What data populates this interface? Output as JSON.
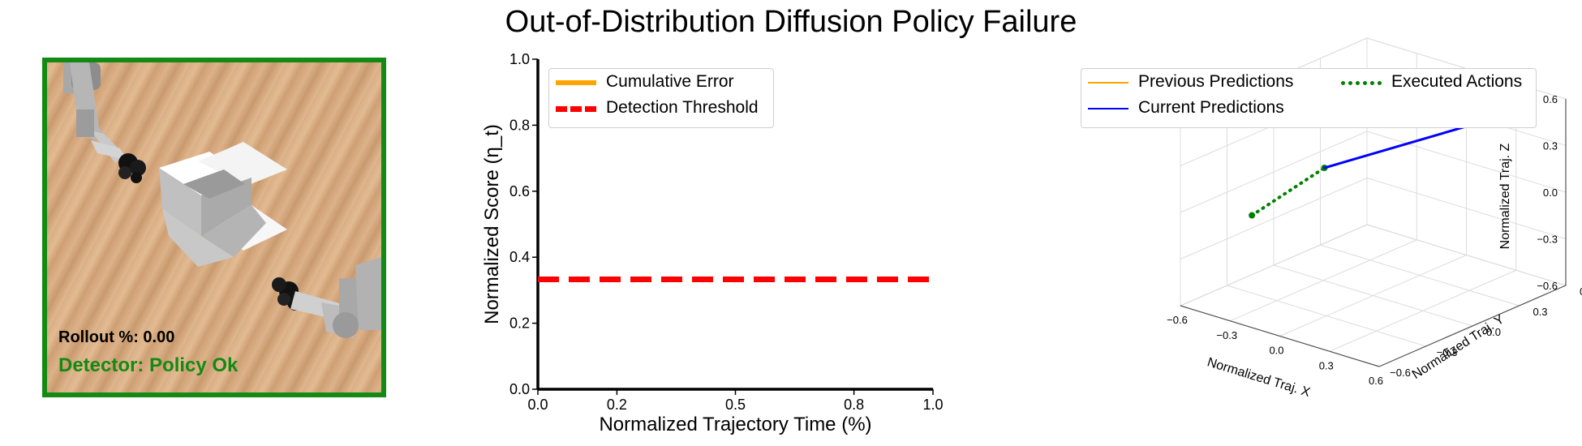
{
  "figure": {
    "title": "Out-of-Distribution Diffusion Policy Failure"
  },
  "scene": {
    "rollout_label": "Rollout %: 0.00",
    "detector_label": "Detector: Policy Ok",
    "frame_color": "#138a13",
    "status_color": "#138a13"
  },
  "chart_data": [
    {
      "type": "line",
      "xlabel": "Normalized Trajectory Time (%)",
      "ylabel": "Normalized Score (η_t)",
      "xlim": [
        0.0,
        1.0
      ],
      "ylim": [
        0.0,
        1.0
      ],
      "xticks": [
        "0.0",
        "0.2",
        "0.5",
        "0.8",
        "1.0"
      ],
      "xtick_values": [
        0.0,
        0.2,
        0.5,
        0.8,
        1.0
      ],
      "yticks": [
        "0.0",
        "0.2",
        "0.4",
        "0.6",
        "0.8",
        "1.0"
      ],
      "ytick_values": [
        0.0,
        0.2,
        0.4,
        0.6,
        0.8,
        1.0
      ],
      "grid": false,
      "legend": "upper-left",
      "series": [
        {
          "name": "Cumulative Error",
          "color": "#ffa500",
          "style": "solid",
          "x": [],
          "y": []
        },
        {
          "name": "Detection Threshold",
          "color": "#ff0000",
          "style": "dashed",
          "x": [
            0.0,
            1.0
          ],
          "y": [
            0.333,
            0.333
          ]
        }
      ]
    },
    {
      "type": "line3d",
      "xlabel": "Normalized Traj. X",
      "ylabel": "Normalized Traj. Y",
      "zlabel": "Normalized Traj. Z",
      "xlim": [
        -0.6,
        0.6
      ],
      "ylim": [
        -0.6,
        0.6
      ],
      "zlim": [
        -0.6,
        0.6
      ],
      "xticks": [
        "−0.6",
        "−0.3",
        "0.0",
        "0.3",
        "0.6"
      ],
      "yticks": [
        "−0.6",
        "−0.3",
        "0.0",
        "0.3",
        "0.6"
      ],
      "zticks": [
        "−0.6",
        "−0.3",
        "0.0",
        "0.3",
        "0.6"
      ],
      "grid": true,
      "legend": "top",
      "series": [
        {
          "name": "Previous Predictions",
          "color": "#ffa500",
          "style": "solid",
          "points": [
            [
              -0.2,
              -0.1,
              0.2
            ],
            [
              0.55,
              0.45,
              0.6
            ]
          ]
        },
        {
          "name": "Executed Actions",
          "color": "#008000",
          "style": "dotted",
          "points": [
            [
              -0.45,
              -0.3,
              -0.1
            ],
            [
              -0.2,
              -0.1,
              0.2
            ]
          ]
        },
        {
          "name": "Current Predictions",
          "color": "#0000ff",
          "style": "solid",
          "points": [
            [
              -0.2,
              -0.1,
              0.2
            ],
            [
              0.55,
              0.45,
              0.6
            ]
          ]
        }
      ]
    }
  ]
}
